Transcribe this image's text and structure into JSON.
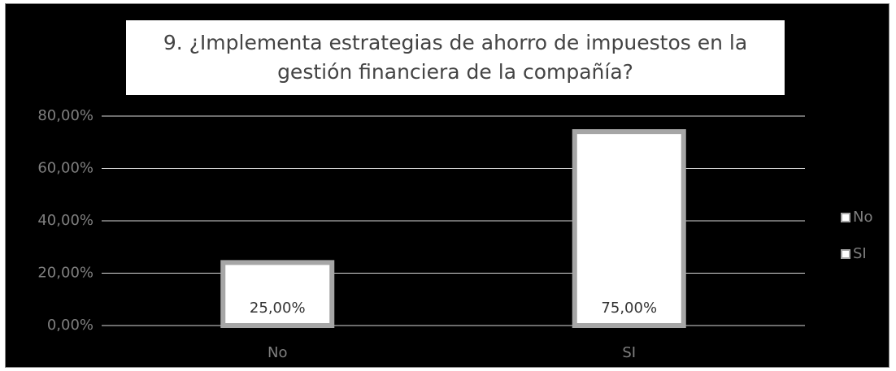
{
  "chart_data": {
    "type": "bar",
    "title": "9. ¿Implementa estrategias de ahorro de impuestos en la gestión financiera de la compañía?",
    "categories": [
      "No",
      "SI"
    ],
    "values": [
      25,
      75
    ],
    "value_labels": [
      "25,00%",
      "75,00%"
    ],
    "color": "#ffffff",
    "ylim": [
      0,
      80
    ],
    "yticks": [
      {
        "value": 0,
        "label": "0,00%"
      },
      {
        "value": 20,
        "label": "20,00%"
      },
      {
        "value": 40,
        "label": "40,00%"
      },
      {
        "value": 60,
        "label": "60,00%"
      },
      {
        "value": 80,
        "label": "80,00%"
      }
    ],
    "grid": true,
    "legend": "right"
  }
}
